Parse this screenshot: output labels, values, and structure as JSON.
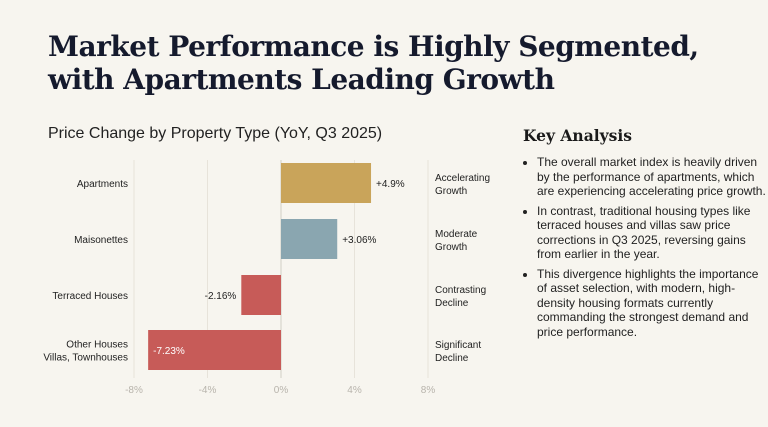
{
  "title": {
    "line1": "Market Performance is Highly Segmented,",
    "line2": "with Apartments Leading Growth"
  },
  "colors": {
    "background": "#f7f5ef",
    "title": "#151a2d",
    "grid": "#e7e3da",
    "zero_line": "#d2cec5",
    "tick": "#b8b4ac"
  },
  "chart_data": {
    "type": "bar",
    "orientation": "horizontal",
    "title": "Price Change by Property Type (YoY, Q3 2025)",
    "categories": [
      [
        "Apartments"
      ],
      [
        "Maisonettes"
      ],
      [
        "Terraced Houses"
      ],
      [
        "Other Houses",
        "Villas, Townhouses"
      ]
    ],
    "values": [
      4.9,
      3.06,
      -2.16,
      -7.23
    ],
    "value_labels": [
      "+4.9%",
      "+3.06%",
      "-2.16%",
      "-7.23%"
    ],
    "bar_colors": [
      "#c9a45a",
      "#8aa6b0",
      "#c75b58",
      "#c75b58"
    ],
    "annotations": [
      [
        "Accelerating",
        "Growth"
      ],
      [
        "Moderate",
        "Growth"
      ],
      [
        "Contrasting",
        "Decline"
      ],
      [
        "Significant",
        "Decline"
      ]
    ],
    "xlim": [
      -8,
      8
    ],
    "x_ticks": [
      -8,
      -4,
      0,
      4,
      8
    ],
    "x_tick_labels": [
      "-8%",
      "-4%",
      "0%",
      "4%",
      "8%"
    ],
    "grid": true,
    "xlabel": "",
    "ylabel": ""
  },
  "analysis": {
    "title": "Key Analysis",
    "points": [
      "The overall market index is heavily driven by the performance of apartments, which are experiencing accelerating price growth.",
      "In contrast, traditional housing types like terraced houses and villas saw price corrections in Q3 2025, reversing gains from earlier in the year.",
      "This divergence highlights the importance of asset selection, with modern, high-density housing formats currently commanding the strongest demand and price performance."
    ]
  }
}
